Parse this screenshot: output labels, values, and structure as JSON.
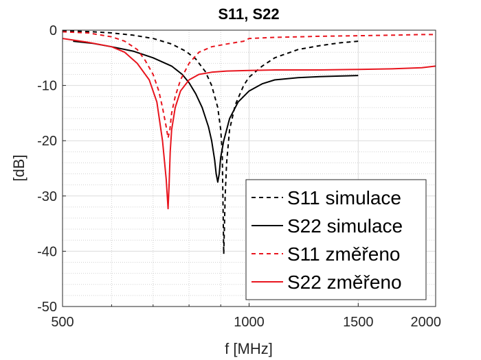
{
  "chart_data": {
    "type": "line",
    "title": "S11, S22",
    "xlabel": "f [MHz]",
    "ylabel": "[dB]",
    "xscale": "log",
    "xlim": [
      500,
      2000
    ],
    "ylim": [
      -50,
      0
    ],
    "xticks": [
      500,
      1000,
      1500,
      2000
    ],
    "xtick_labels": [
      "500",
      "1000",
      "1500",
      "2000"
    ],
    "yticks": [
      0,
      -10,
      -20,
      -30,
      -40,
      -50
    ],
    "ytick_labels": [
      "0",
      "-10",
      "-20",
      "-30",
      "-40",
      "-50"
    ],
    "grid": true,
    "minor_grid": true,
    "legend_position": "bottom-right",
    "series": [
      {
        "name": "S11 simulace",
        "color": "#000000",
        "dash": "dashed",
        "x": [
          500,
          560,
          600,
          650,
          700,
          750,
          790,
          820,
          850,
          870,
          890,
          900,
          905,
          910,
          915,
          920,
          930,
          950,
          980,
          1000,
          1050,
          1100,
          1200,
          1300,
          1400,
          1500
        ],
        "y": [
          -0.1,
          -0.3,
          -0.5,
          -0.9,
          -1.5,
          -2.5,
          -3.8,
          -5.2,
          -7.5,
          -10,
          -14,
          -18,
          -22,
          -40.5,
          -30,
          -24,
          -18,
          -13.5,
          -10,
          -8.5,
          -6.5,
          -5,
          -3.5,
          -2.8,
          -2.3,
          -2
        ]
      },
      {
        "name": "S22 simulace",
        "color": "#000000",
        "dash": "solid",
        "x": [
          520,
          560,
          600,
          650,
          700,
          750,
          780,
          800,
          820,
          840,
          860,
          870,
          880,
          885,
          890,
          895,
          900,
          910,
          930,
          960,
          1000,
          1050,
          1100,
          1200,
          1300,
          1400,
          1500
        ],
        "y": [
          -2,
          -2.4,
          -3,
          -3.8,
          -5,
          -6.5,
          -8,
          -9.5,
          -11.5,
          -14,
          -17.5,
          -20,
          -23.5,
          -26,
          -27.5,
          -26,
          -23,
          -20,
          -16,
          -13,
          -11,
          -9.7,
          -9,
          -8.6,
          -8.4,
          -8.3,
          -8.2
        ]
      },
      {
        "name": "S11 změřeno",
        "color": "#e8141d",
        "dash": "dashed",
        "x": [
          500,
          550,
          600,
          630,
          660,
          680,
          700,
          715,
          725,
          735,
          740,
          745,
          750,
          760,
          775,
          800,
          830,
          870,
          920,
          980,
          1000,
          1050,
          1100,
          1200,
          1300,
          1500,
          1700,
          1900,
          2000
        ],
        "y": [
          -0.3,
          -0.5,
          -1.2,
          -2,
          -3.5,
          -5.5,
          -8,
          -11,
          -14,
          -17.5,
          -19.5,
          -18,
          -15,
          -12,
          -9,
          -6,
          -4,
          -3,
          -2.5,
          -2,
          -1.5,
          -1.4,
          -1.3,
          -1.2,
          -1.1,
          -1,
          -0.9,
          -0.8,
          -0.8
        ]
      },
      {
        "name": "S22 změřeno",
        "color": "#e8141d",
        "dash": "solid",
        "x": [
          500,
          550,
          600,
          630,
          660,
          690,
          710,
          725,
          735,
          740,
          743,
          746,
          750,
          760,
          775,
          800,
          830,
          870,
          920,
          1000,
          1100,
          1200,
          1300,
          1500,
          1700,
          1900,
          2000
        ],
        "y": [
          -1.5,
          -2.2,
          -3,
          -4,
          -6,
          -9,
          -13,
          -20,
          -27,
          -32.3,
          -28,
          -22,
          -18,
          -14,
          -11,
          -9,
          -8,
          -7.6,
          -7.4,
          -7.3,
          -7.2,
          -7.2,
          -7.2,
          -7.1,
          -7,
          -6.8,
          -6.5
        ]
      }
    ]
  }
}
